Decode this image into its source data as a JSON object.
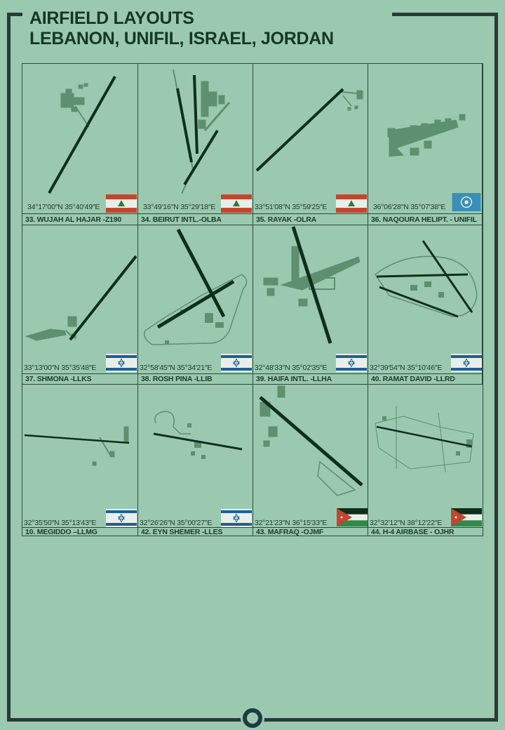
{
  "header": {
    "line1": "AIRFIELD LAYOUTS",
    "line2": "LEBANON, UNIFIL, ISRAEL, JORDAN"
  },
  "colors": {
    "background": "#9ac9b0",
    "frame": "#2a3a34",
    "runway": "#0f2e1c",
    "apron": "#5e8f6e"
  },
  "airfields": [
    {
      "name": "33. WUJAH AL HAJAR -Z190",
      "coords": "34°17′00″N   35°40′49″E",
      "flag": "lebanon-flag-icon"
    },
    {
      "name": "34. BEIRUT INTL.-OLBA",
      "coords": "33°49′16″N   35°29′18″E",
      "flag": "lebanon-flag-icon"
    },
    {
      "name": "35. RAYAK -OLRA",
      "coords": "33°51′08″N   35°59′25″E",
      "flag": "lebanon-flag-icon"
    },
    {
      "name": "36. NAQOURA HELIPT. - UNIFIL",
      "coords": "36°06′28″N   35°07′38″E",
      "flag": "un-flag-icon"
    },
    {
      "name": "37. SHMONA -LLKS",
      "coords": "33°13′00″N   35°35′48″E",
      "flag": "israel-flag-icon"
    },
    {
      "name": "38. ROSH PINA -LLIB",
      "coords": "32°58′45″N  35°34′21″E",
      "flag": "israel-flag-icon"
    },
    {
      "name": "39. HAIFA INTL. -LLHA",
      "coords": "32°48′33″N  35°02′35″E",
      "flag": "israel-flag-icon"
    },
    {
      "name": "40. RAMAT DAVID -LLRD",
      "coords": "32°39′54″N   35°10′46″E",
      "flag": "israel-flag-icon"
    },
    {
      "name": "10. MEGIDDO –LLMG",
      "coords": "32°35′50″N   35°13′43″E",
      "flag": "israel-flag-icon"
    },
    {
      "name": "42. EYN SHEMER -LLES",
      "coords": "32°26′26″N   35°00′27″E",
      "flag": "israel-flag-icon"
    },
    {
      "name": "43. MAFRAQ -OJMF",
      "coords": "32°21′23″N  36°15′33″E",
      "flag": "jordan-flag-icon"
    },
    {
      "name": "44. H-4 AIRBASE - OJHR",
      "coords": "32°32′12″N  38°12′22″E",
      "flag": "jordan-flag-icon"
    }
  ]
}
